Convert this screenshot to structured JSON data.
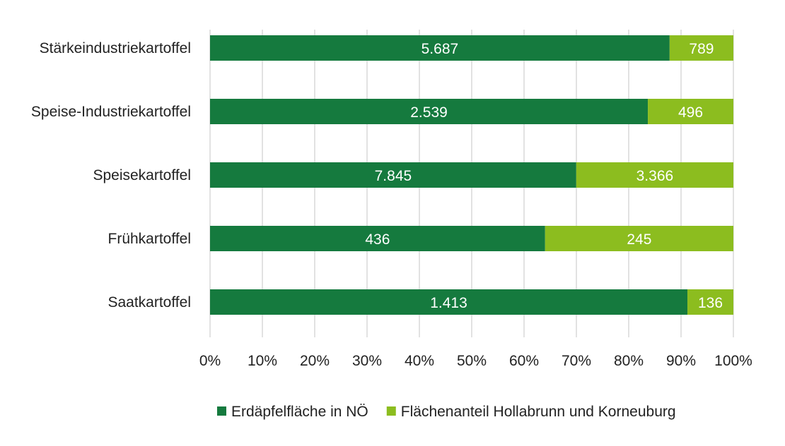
{
  "chart_data": {
    "type": "bar",
    "orientation": "horizontal",
    "stacking": "percent",
    "categories": [
      "Stärkeindustriekartoffel",
      "Speise-Industriekartoffel",
      "Speisekartoffel",
      "Frühkartoffel",
      "Saatkartoffel"
    ],
    "series": [
      {
        "name": "Erdäpfelfläche in NÖ",
        "values": [
          5687,
          2539,
          7845,
          436,
          1413
        ],
        "labels": [
          "5.687",
          "2.539",
          "7.845",
          "436",
          "1.413"
        ],
        "color": "#157a3e"
      },
      {
        "name": "Flächenanteil Hollabrunn und Korneuburg",
        "values": [
          789,
          496,
          3366,
          245,
          136
        ],
        "labels": [
          "789",
          "496",
          "3.366",
          "245",
          "136"
        ],
        "color": "#8cbd1f"
      }
    ],
    "xlim": [
      0,
      100
    ],
    "xticks": [
      "0%",
      "10%",
      "20%",
      "30%",
      "40%",
      "50%",
      "60%",
      "70%",
      "80%",
      "90%",
      "100%"
    ],
    "grid": "vertical",
    "legend": "bottom"
  }
}
